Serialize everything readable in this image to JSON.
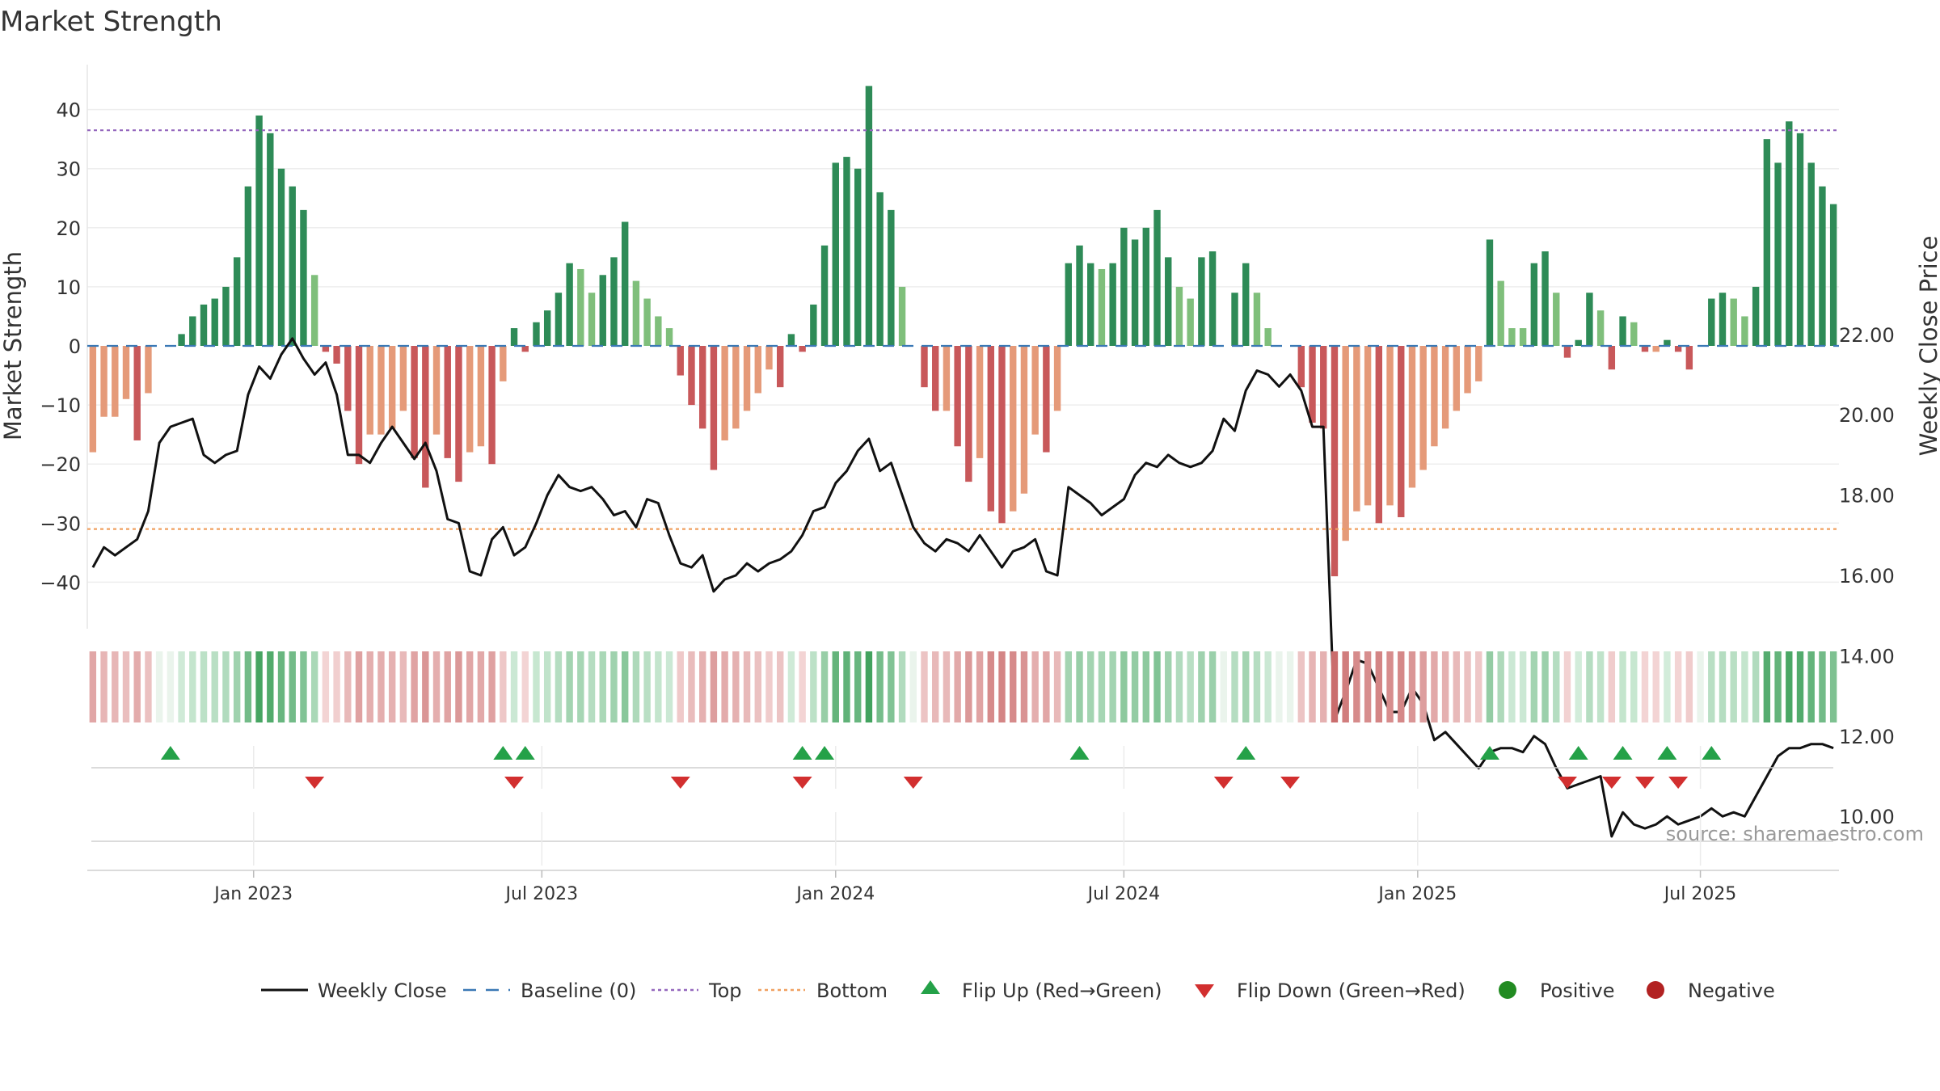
{
  "chart_data": {
    "type": "bar+line",
    "title": "Market Strength",
    "ylabel_left": "Market Strength",
    "ylabel_right": "Weekly Close Price",
    "ylim_left": [
      -47,
      47
    ],
    "ylim_right": [
      8.95,
      22.7
    ],
    "yticks_left": [
      40,
      30,
      20,
      10,
      0,
      -10,
      -20,
      -30,
      -40
    ],
    "yticks_left_labels": [
      "40",
      "30",
      "20",
      "10",
      "0",
      "−10",
      "−20",
      "−30",
      "−40"
    ],
    "yticks_right": [
      22,
      20,
      18,
      16,
      14,
      12,
      10
    ],
    "yticks_right_labels": [
      "22.00",
      "20.00",
      "18.00",
      "16.00",
      "14.00",
      "12.00",
      "10.00"
    ],
    "top_line": 36.5,
    "bottom_line": -31,
    "x_date_labels": [
      {
        "index": 14.5,
        "label": "Jan 2023"
      },
      {
        "index": 40.5,
        "label": "Jul 2023"
      },
      {
        "index": 67,
        "label": "Jan 2024"
      },
      {
        "index": 93,
        "label": "Jul 2024"
      },
      {
        "index": 119.5,
        "label": "Jan 2025"
      },
      {
        "index": 145,
        "label": "Jul 2025"
      }
    ],
    "strength": [
      -18,
      -12,
      -12,
      -9,
      -16,
      -8,
      0,
      0,
      2,
      5,
      7,
      8,
      10,
      15,
      27,
      39,
      36,
      30,
      27,
      23,
      12,
      -1,
      -3,
      -11,
      -20,
      -15,
      -15,
      -14,
      -11,
      -19,
      -24,
      -15,
      -19,
      -23,
      -18,
      -17,
      -20,
      -6,
      3,
      -1,
      4,
      6,
      9,
      14,
      13,
      9,
      12,
      15,
      21,
      11,
      8,
      5,
      3,
      -5,
      -10,
      -14,
      -21,
      -16,
      -14,
      -11,
      -8,
      -4,
      -7,
      2,
      -1,
      7,
      17,
      31,
      32,
      30,
      44,
      26,
      23,
      10,
      0,
      -7,
      -11,
      -11,
      -17,
      -23,
      -19,
      -28,
      -30,
      -28,
      -25,
      -15,
      -18,
      -11,
      14,
      17,
      14,
      13,
      14,
      20,
      18,
      20,
      23,
      15,
      10,
      8,
      15,
      16,
      0,
      9,
      14,
      9,
      3,
      0,
      0,
      -7,
      -13,
      -14,
      -39,
      -33,
      -28,
      -27,
      -30,
      -27,
      -29,
      -24,
      -21,
      -17,
      -14,
      -11,
      -8,
      -6,
      18,
      11,
      3,
      3,
      14,
      16,
      9,
      -2,
      1,
      9,
      6,
      -4,
      5,
      4,
      -1,
      -1,
      1,
      -1,
      -4,
      0,
      8,
      9,
      8,
      5,
      10,
      35,
      31,
      38,
      36,
      31,
      27,
      24
    ],
    "weekly_close": [
      16.2,
      16.7,
      16.5,
      16.7,
      16.9,
      17.6,
      19.3,
      19.7,
      19.8,
      19.9,
      19.0,
      18.8,
      19.0,
      19.1,
      20.5,
      21.2,
      20.9,
      21.5,
      21.9,
      21.4,
      21.0,
      21.3,
      20.5,
      19.0,
      19.0,
      18.8,
      19.3,
      19.7,
      19.3,
      18.9,
      19.3,
      18.6,
      17.4,
      17.3,
      16.1,
      16.0,
      16.9,
      17.2,
      16.5,
      16.7,
      17.3,
      18.0,
      18.5,
      18.2,
      18.1,
      18.2,
      17.9,
      17.5,
      17.6,
      17.2,
      17.9,
      17.8,
      17.0,
      16.3,
      16.2,
      16.5,
      15.6,
      15.9,
      16.0,
      16.3,
      16.1,
      16.3,
      16.4,
      16.6,
      17.0,
      17.6,
      17.7,
      18.3,
      18.6,
      19.1,
      19.4,
      18.6,
      18.8,
      18.0,
      17.2,
      16.8,
      16.6,
      16.9,
      16.8,
      16.6,
      17.0,
      16.6,
      16.2,
      16.6,
      16.7,
      16.9,
      16.1,
      16.0,
      18.2,
      18.0,
      17.8,
      17.5,
      17.7,
      17.9,
      18.5,
      18.8,
      18.7,
      19.0,
      18.8,
      18.7,
      18.8,
      19.1,
      19.9,
      19.6,
      20.6,
      21.1,
      21.0,
      20.7,
      21.0,
      20.6,
      19.7,
      19.7,
      12.4,
      13.1,
      13.9,
      13.8,
      13.2,
      12.6,
      12.6,
      13.2,
      12.8,
      11.9,
      12.1,
      11.8,
      11.5,
      11.2,
      11.6,
      11.7,
      11.7,
      11.6,
      12.0,
      11.8,
      11.2,
      10.7,
      10.8,
      10.9,
      11.0,
      9.5,
      10.1,
      9.8,
      9.7,
      9.8,
      10.0,
      9.8,
      9.9,
      10.0,
      10.2,
      10.0,
      10.1,
      10.0,
      10.5,
      11.0,
      11.5,
      11.7,
      11.7,
      11.8,
      11.8,
      11.7
    ],
    "flip_up_indices": [
      7,
      37,
      39,
      64,
      66,
      89,
      104,
      126,
      134,
      138,
      142,
      146
    ],
    "flip_down_indices": [
      20,
      38,
      53,
      64,
      74,
      102,
      108,
      133,
      137,
      140,
      143
    ],
    "legend": [
      "Weekly Close",
      "Baseline (0)",
      "Top",
      "Bottom",
      "Flip Up (Red→Green)",
      "Flip Down (Green→Red)",
      "Positive",
      "Negative"
    ],
    "colors": {
      "pos_dark": "#2e8b57",
      "pos_light": "#7fbf7b",
      "neg_dark": "#c8585a",
      "neg_light": "#e59a79",
      "line": "#111111",
      "baseline": "#3a78b5",
      "top": "#9467bd",
      "bottom": "#f0a060",
      "flip_up": "#24a148",
      "flip_down": "#d22f2f",
      "legend_pos": "#228b22",
      "legend_neg": "#b22222"
    }
  },
  "source_text": "source: sharemaestro.com"
}
